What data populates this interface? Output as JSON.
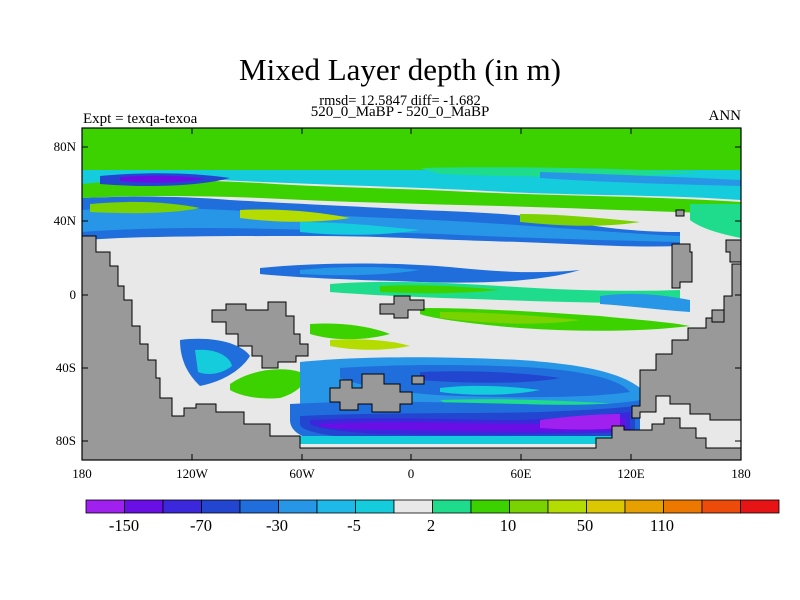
{
  "title": "Mixed Layer depth (in m)",
  "subtitle": "rmsd= 12.5847 diff= -1.682",
  "experiment_line": "520_0_MaBP - 520_0_MaBP",
  "left_label": "Expt = texqa-texoa",
  "right_label": "ANN",
  "lat_labels": [
    "80N",
    "40N",
    "0",
    "40S",
    "80S"
  ],
  "lon_labels": [
    "180",
    "120W",
    "60W",
    "0",
    "60E",
    "120E",
    "180"
  ],
  "colorbar": {
    "colors": [
      "#a020f0",
      "#6a0ee6",
      "#3c28dc",
      "#2346d0",
      "#1f6edc",
      "#2896e6",
      "#1eb9e8",
      "#14ccdc",
      "#e8e8e8",
      "#1edc8c",
      "#3cd200",
      "#7ad200",
      "#b4dc00",
      "#dcc800",
      "#e6a000",
      "#ec7800",
      "#ec4b0a",
      "#e61414"
    ],
    "labels": [
      "-150",
      "-70",
      "-30",
      "-5",
      "2",
      "10",
      "50",
      "110"
    ]
  },
  "land_color": "#999999"
}
